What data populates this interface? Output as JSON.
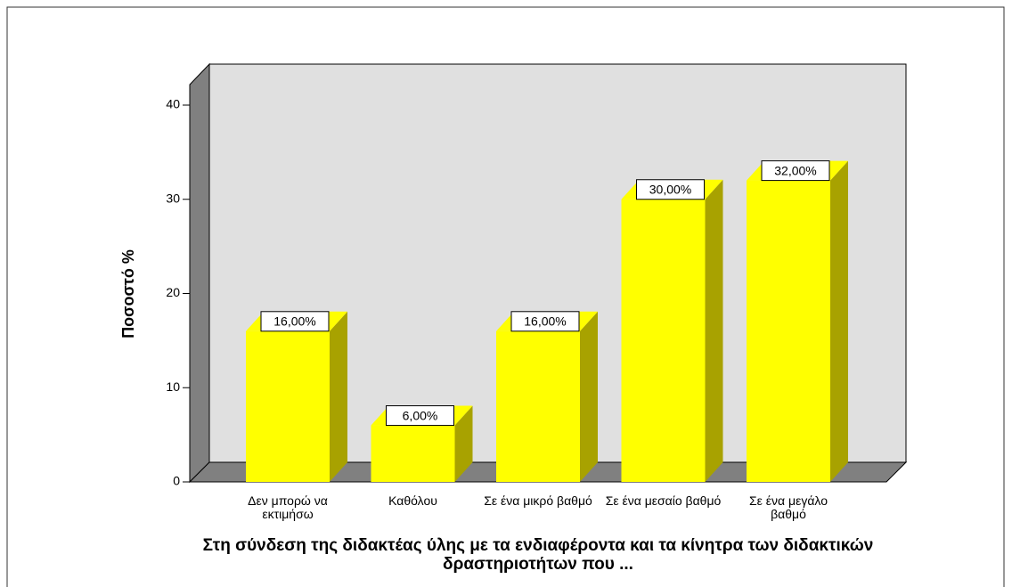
{
  "chart_data": {
    "type": "bar3d",
    "categories": [
      "Δεν μπορώ να εκτιμήσω",
      "Καθόλου",
      "Σε ένα μικρό βαθμό",
      "Σε ένα μεσαίο βαθμό",
      "Σε ένα μεγάλο βαθμό"
    ],
    "values": [
      16,
      6,
      16,
      30,
      32
    ],
    "value_labels": [
      "16,00%",
      "6,00%",
      "16,00%",
      "30,00%",
      "32,00%"
    ],
    "color": "#ffff00",
    "side_color": "#a8a200",
    "ylabel": "Ποσοστό %",
    "xlabel": "Στη σύνδεση της διδακτέας ύλης με τα ενδιαφέροντα και τα κίνητρα των διδακτικών δραστηριοτήτων που ...",
    "ylim": [
      0,
      40
    ],
    "yticks": [
      0,
      10,
      20,
      30,
      40
    ]
  }
}
